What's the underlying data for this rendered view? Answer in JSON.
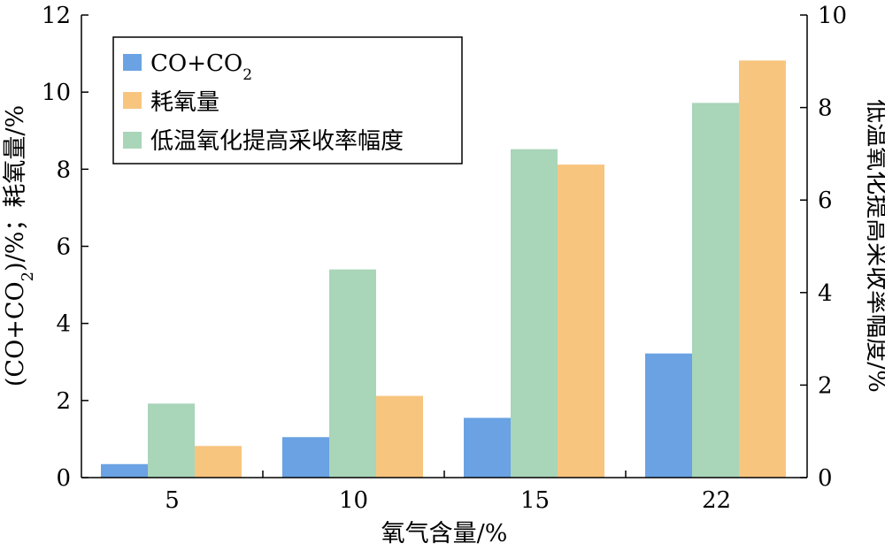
{
  "chart_data": {
    "type": "bar",
    "categories": [
      "5",
      "10",
      "15",
      "22"
    ],
    "xlabel": "氧气含量/%",
    "ylabel_left": {
      "main": "(CO+CO",
      "sub": "2",
      "rest": ")/%；耗氧量/%"
    },
    "ylabel_right": "低温氧化提高采收率幅度/%",
    "ylim_left": [
      0,
      12
    ],
    "ylim_right": [
      0,
      10
    ],
    "yticks_left": [
      "0",
      "2",
      "4",
      "6",
      "8",
      "10",
      "12"
    ],
    "yticks_right": [
      "0",
      "2",
      "4",
      "6",
      "8",
      "10"
    ],
    "legend_position": "top-left",
    "series": [
      {
        "name": "CO+CO2",
        "legend_main": "CO+CO",
        "legend_sub": "2",
        "axis": "left",
        "color": "#6aa2e3",
        "values": [
          0.35,
          1.05,
          1.55,
          3.22
        ]
      },
      {
        "name": "低温氧化提高采收率幅度",
        "axis": "right",
        "color": "#a9d5b9",
        "values": [
          1.6,
          4.5,
          7.1,
          8.1
        ]
      },
      {
        "name": "耗氧量",
        "axis": "left",
        "color": "#f8c57f",
        "values": [
          0.82,
          2.12,
          8.12,
          10.82
        ]
      }
    ],
    "legend_order": [
      0,
      2,
      1
    ]
  }
}
